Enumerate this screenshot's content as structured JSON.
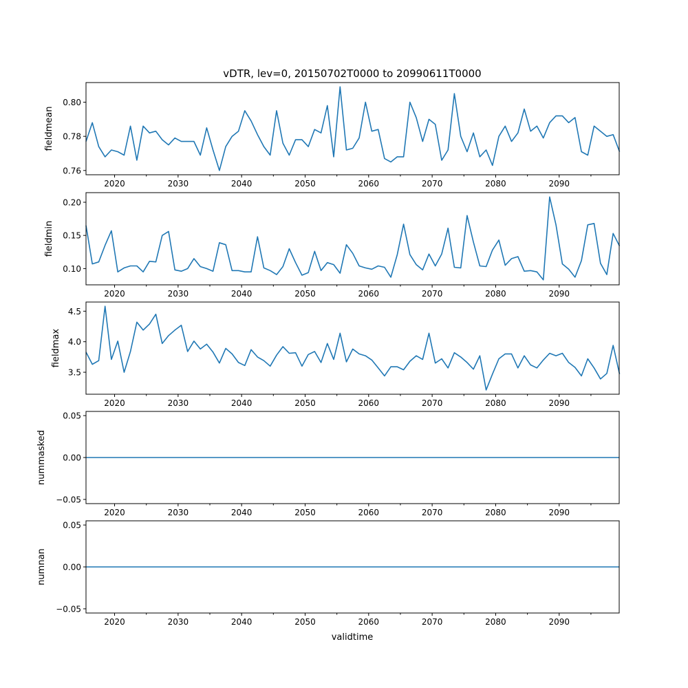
{
  "chart_data": [
    {
      "type": "line",
      "title": "vDTR, lev=0, 20150702T0000 to 20990611T0000",
      "xlabel": "",
      "ylabel": "fieldmean",
      "xlim": [
        2015.5,
        2099.45
      ],
      "ylim": [
        0.7575,
        0.8115
      ],
      "xticks": [
        2020,
        2030,
        2040,
        2050,
        2060,
        2070,
        2080,
        2090
      ],
      "yticks": [
        0.76,
        0.78,
        0.8
      ],
      "ytick_labels": [
        "0.76",
        "0.78",
        "0.80"
      ],
      "color": "#1f77b4",
      "x_start": 2015.5,
      "values": [
        0.777,
        0.788,
        0.774,
        0.768,
        0.772,
        0.771,
        0.769,
        0.786,
        0.766,
        0.786,
        0.782,
        0.783,
        0.778,
        0.775,
        0.779,
        0.777,
        0.777,
        0.777,
        0.769,
        0.785,
        0.772,
        0.76,
        0.774,
        0.78,
        0.783,
        0.795,
        0.789,
        0.781,
        0.774,
        0.769,
        0.795,
        0.776,
        0.769,
        0.778,
        0.778,
        0.774,
        0.784,
        0.782,
        0.798,
        0.768,
        0.809,
        0.772,
        0.773,
        0.779,
        0.8,
        0.783,
        0.784,
        0.767,
        0.765,
        0.768,
        0.768,
        0.8,
        0.791,
        0.777,
        0.79,
        0.787,
        0.766,
        0.772,
        0.805,
        0.78,
        0.771,
        0.782,
        0.768,
        0.772,
        0.763,
        0.78,
        0.786,
        0.777,
        0.782,
        0.796,
        0.783,
        0.786,
        0.779,
        0.788,
        0.792,
        0.792,
        0.788,
        0.791,
        0.771,
        0.769,
        0.786,
        0.783,
        0.78,
        0.781,
        0.771
      ]
    },
    {
      "type": "line",
      "ylabel": "fieldmin",
      "xlim": [
        2015.5,
        2099.45
      ],
      "ylim": [
        0.0755,
        0.2145
      ],
      "yticks": [
        0.1,
        0.15,
        0.2
      ],
      "ytick_labels": [
        "0.10",
        "0.15",
        "0.20"
      ],
      "color": "#1f77b4",
      "x_start": 2015.5,
      "values": [
        0.165,
        0.107,
        0.11,
        0.135,
        0.157,
        0.095,
        0.101,
        0.104,
        0.104,
        0.095,
        0.111,
        0.11,
        0.15,
        0.156,
        0.098,
        0.096,
        0.1,
        0.115,
        0.103,
        0.1,
        0.096,
        0.139,
        0.136,
        0.097,
        0.097,
        0.095,
        0.095,
        0.148,
        0.101,
        0.097,
        0.091,
        0.103,
        0.13,
        0.109,
        0.09,
        0.094,
        0.126,
        0.097,
        0.109,
        0.106,
        0.093,
        0.136,
        0.123,
        0.104,
        0.101,
        0.099,
        0.104,
        0.102,
        0.087,
        0.121,
        0.167,
        0.121,
        0.106,
        0.098,
        0.122,
        0.104,
        0.122,
        0.161,
        0.102,
        0.101,
        0.18,
        0.14,
        0.104,
        0.103,
        0.128,
        0.143,
        0.105,
        0.115,
        0.118,
        0.096,
        0.097,
        0.095,
        0.083,
        0.208,
        0.166,
        0.107,
        0.099,
        0.087,
        0.112,
        0.166,
        0.168,
        0.108,
        0.091,
        0.153,
        0.134
      ]
    },
    {
      "type": "line",
      "ylabel": "fieldmax",
      "xlim": [
        2015.5,
        2099.45
      ],
      "ylim": [
        3.14,
        4.65
      ],
      "yticks": [
        3.5,
        4.0,
        4.5
      ],
      "ytick_labels": [
        "3.5",
        "4.0",
        "4.5"
      ],
      "color": "#1f77b4",
      "x_start": 2015.5,
      "values": [
        3.83,
        3.63,
        3.69,
        4.58,
        3.71,
        4.01,
        3.5,
        3.84,
        4.32,
        4.19,
        4.29,
        4.45,
        3.97,
        4.1,
        4.19,
        4.27,
        3.84,
        4.01,
        3.88,
        3.96,
        3.83,
        3.65,
        3.89,
        3.8,
        3.66,
        3.61,
        3.87,
        3.75,
        3.69,
        3.6,
        3.78,
        3.92,
        3.81,
        3.82,
        3.6,
        3.79,
        3.84,
        3.66,
        3.97,
        3.71,
        4.14,
        3.67,
        3.88,
        3.8,
        3.77,
        3.7,
        3.57,
        3.44,
        3.59,
        3.59,
        3.54,
        3.68,
        3.77,
        3.71,
        4.14,
        3.65,
        3.72,
        3.57,
        3.82,
        3.75,
        3.66,
        3.55,
        3.77,
        3.21,
        3.47,
        3.72,
        3.8,
        3.8,
        3.57,
        3.77,
        3.62,
        3.57,
        3.7,
        3.81,
        3.77,
        3.81,
        3.66,
        3.58,
        3.44,
        3.72,
        3.57,
        3.39,
        3.48,
        3.94,
        3.47
      ]
    },
    {
      "type": "line",
      "ylabel": "nummasked",
      "xlim": [
        2015.5,
        2099.45
      ],
      "ylim": [
        -0.055,
        0.055
      ],
      "yticks": [
        -0.05,
        0.0,
        0.05
      ],
      "ytick_labels": [
        "−0.05",
        "0.00",
        "0.05"
      ],
      "color": "#1f77b4",
      "x_start": 2015.5,
      "constant_value": 0,
      "count": 85
    },
    {
      "type": "line",
      "xlabel": "validtime",
      "ylabel": "numnan",
      "xlim": [
        2015.5,
        2099.45
      ],
      "ylim": [
        -0.055,
        0.055
      ],
      "yticks": [
        -0.05,
        0.0,
        0.05
      ],
      "ytick_labels": [
        "−0.05",
        "0.00",
        "0.05"
      ],
      "color": "#1f77b4",
      "x_start": 2015.5,
      "constant_value": 0,
      "count": 85
    }
  ]
}
